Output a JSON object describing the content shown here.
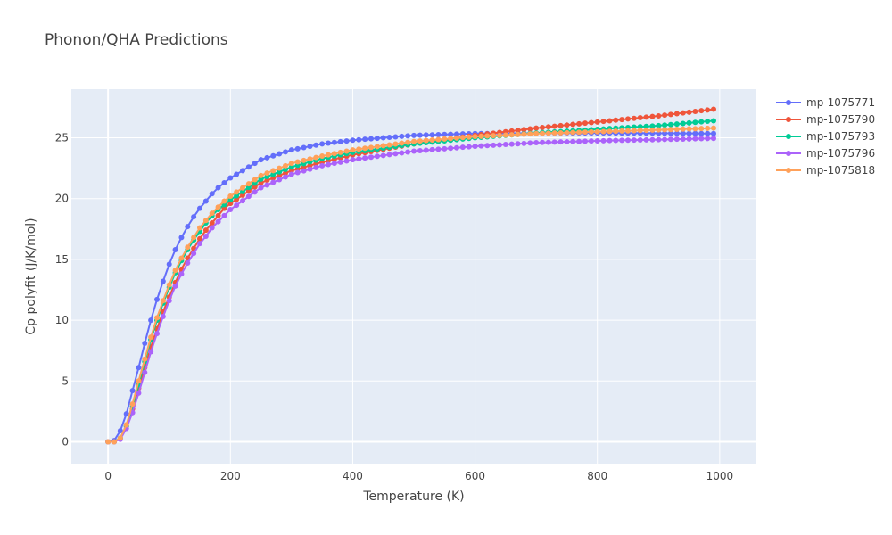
{
  "chart_data": {
    "type": "line",
    "title": "Phonon/QHA Predictions",
    "xlabel": "Temperature (K)",
    "ylabel": "Cp polyfit (J/K/mol)",
    "xlim": [
      -60,
      1060
    ],
    "ylim": [
      -1.8,
      29
    ],
    "x_ticks": [
      0,
      200,
      400,
      600,
      800,
      1000
    ],
    "y_ticks": [
      0,
      5,
      10,
      15,
      20,
      25
    ],
    "x_tick_labels": [
      "0",
      "200",
      "400",
      "600",
      "800",
      "1000"
    ],
    "y_tick_labels": [
      "0",
      "5",
      "10",
      "15",
      "20",
      "25"
    ],
    "x_step": 10,
    "x_max": 990,
    "grid": true,
    "legend_position": "right",
    "background": "#e5ecf6",
    "series": [
      {
        "name": "mp-1075771",
        "color": "#636efa",
        "points": [
          [
            0,
            0
          ],
          [
            10,
            0.1
          ],
          [
            20,
            0.9
          ],
          [
            30,
            2.3
          ],
          [
            40,
            4.2
          ],
          [
            50,
            6.1
          ],
          [
            60,
            8.1
          ],
          [
            70,
            10.0
          ],
          [
            80,
            11.7
          ],
          [
            90,
            13.2
          ],
          [
            100,
            14.6
          ],
          [
            110,
            15.8
          ],
          [
            120,
            16.8
          ],
          [
            130,
            17.7
          ],
          [
            140,
            18.5
          ],
          [
            150,
            19.2
          ],
          [
            160,
            19.8
          ],
          [
            170,
            20.4
          ],
          [
            180,
            20.9
          ],
          [
            190,
            21.3
          ],
          [
            200,
            21.7
          ],
          [
            250,
            23.2
          ],
          [
            300,
            24.0
          ],
          [
            350,
            24.5
          ],
          [
            400,
            24.8
          ],
          [
            500,
            25.2
          ],
          [
            600,
            25.35
          ],
          [
            800,
            25.4
          ],
          [
            990,
            25.35
          ]
        ]
      },
      {
        "name": "mp-1075790",
        "color": "#ef553b",
        "points": [
          [
            0,
            0
          ],
          [
            10,
            0.0
          ],
          [
            20,
            0.3
          ],
          [
            30,
            1.3
          ],
          [
            40,
            2.7
          ],
          [
            50,
            4.4
          ],
          [
            60,
            6.1
          ],
          [
            70,
            7.8
          ],
          [
            80,
            9.3
          ],
          [
            90,
            10.7
          ],
          [
            100,
            11.9
          ],
          [
            110,
            13.1
          ],
          [
            120,
            14.2
          ],
          [
            130,
            15.1
          ],
          [
            140,
            15.9
          ],
          [
            150,
            16.7
          ],
          [
            160,
            17.4
          ],
          [
            170,
            18.0
          ],
          [
            180,
            18.6
          ],
          [
            190,
            19.2
          ],
          [
            200,
            19.6
          ],
          [
            250,
            21.3
          ],
          [
            300,
            22.3
          ],
          [
            350,
            23.0
          ],
          [
            400,
            23.6
          ],
          [
            500,
            24.5
          ],
          [
            600,
            25.2
          ],
          [
            700,
            25.8
          ],
          [
            800,
            26.3
          ],
          [
            900,
            26.8
          ],
          [
            990,
            27.35
          ]
        ]
      },
      {
        "name": "mp-1075793",
        "color": "#00cc96",
        "points": [
          [
            0,
            0
          ],
          [
            10,
            0.0
          ],
          [
            20,
            0.3
          ],
          [
            30,
            1.3
          ],
          [
            40,
            2.9
          ],
          [
            50,
            4.7
          ],
          [
            60,
            6.6
          ],
          [
            70,
            8.4
          ],
          [
            80,
            10.0
          ],
          [
            90,
            11.4
          ],
          [
            100,
            12.7
          ],
          [
            110,
            13.9
          ],
          [
            120,
            14.9
          ],
          [
            130,
            15.8
          ],
          [
            140,
            16.6
          ],
          [
            150,
            17.3
          ],
          [
            160,
            18.0
          ],
          [
            170,
            18.6
          ],
          [
            180,
            19.1
          ],
          [
            190,
            19.5
          ],
          [
            200,
            19.9
          ],
          [
            250,
            21.6
          ],
          [
            300,
            22.6
          ],
          [
            350,
            23.3
          ],
          [
            400,
            23.8
          ],
          [
            500,
            24.5
          ],
          [
            600,
            25.0
          ],
          [
            700,
            25.4
          ],
          [
            800,
            25.7
          ],
          [
            900,
            26.0
          ],
          [
            990,
            26.4
          ]
        ]
      },
      {
        "name": "mp-1075796",
        "color": "#ab63fa",
        "points": [
          [
            0,
            0
          ],
          [
            10,
            0.0
          ],
          [
            20,
            0.2
          ],
          [
            30,
            1.1
          ],
          [
            40,
            2.4
          ],
          [
            50,
            4.0
          ],
          [
            60,
            5.7
          ],
          [
            70,
            7.4
          ],
          [
            80,
            8.9
          ],
          [
            90,
            10.3
          ],
          [
            100,
            11.6
          ],
          [
            110,
            12.8
          ],
          [
            120,
            13.8
          ],
          [
            130,
            14.7
          ],
          [
            140,
            15.5
          ],
          [
            150,
            16.3
          ],
          [
            160,
            16.9
          ],
          [
            170,
            17.6
          ],
          [
            180,
            18.1
          ],
          [
            190,
            18.6
          ],
          [
            200,
            19.1
          ],
          [
            250,
            20.9
          ],
          [
            300,
            22.0
          ],
          [
            350,
            22.7
          ],
          [
            400,
            23.2
          ],
          [
            500,
            23.9
          ],
          [
            600,
            24.3
          ],
          [
            700,
            24.6
          ],
          [
            800,
            24.75
          ],
          [
            900,
            24.85
          ],
          [
            990,
            24.95
          ]
        ]
      },
      {
        "name": "mp-1075818",
        "color": "#ffa15a",
        "points": [
          [
            0,
            0
          ],
          [
            10,
            0.0
          ],
          [
            20,
            0.3
          ],
          [
            30,
            1.4
          ],
          [
            40,
            3.1
          ],
          [
            50,
            5.0
          ],
          [
            60,
            6.8
          ],
          [
            70,
            8.6
          ],
          [
            80,
            10.2
          ],
          [
            90,
            11.6
          ],
          [
            100,
            12.9
          ],
          [
            110,
            14.1
          ],
          [
            120,
            15.1
          ],
          [
            130,
            16.0
          ],
          [
            140,
            16.8
          ],
          [
            150,
            17.6
          ],
          [
            160,
            18.2
          ],
          [
            170,
            18.8
          ],
          [
            180,
            19.3
          ],
          [
            190,
            19.8
          ],
          [
            200,
            20.2
          ],
          [
            250,
            21.9
          ],
          [
            300,
            22.9
          ],
          [
            350,
            23.5
          ],
          [
            400,
            24.0
          ],
          [
            500,
            24.7
          ],
          [
            600,
            25.1
          ],
          [
            700,
            25.35
          ],
          [
            800,
            25.5
          ],
          [
            900,
            25.65
          ],
          [
            990,
            25.8
          ]
        ]
      }
    ]
  }
}
